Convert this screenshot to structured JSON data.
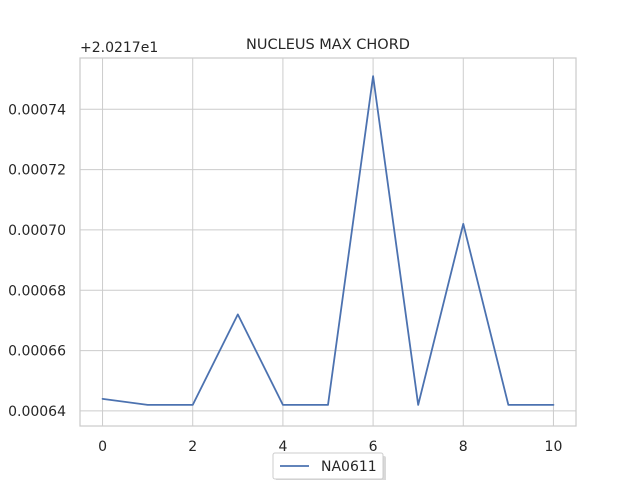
{
  "chart_data": {
    "type": "line",
    "title": "NUCLEUS MAX CHORD",
    "offset_label": "+2.0217e1",
    "xlabel": "",
    "ylabel": "",
    "xlim": [
      -0.5,
      10.5
    ],
    "ylim": [
      0.000635,
      0.000757
    ],
    "x_ticks": [
      0,
      2,
      4,
      6,
      8,
      10
    ],
    "x_tick_labels": [
      "0",
      "2",
      "4",
      "6",
      "8",
      "10"
    ],
    "y_ticks": [
      0.00064,
      0.00066,
      0.00068,
      0.0007,
      0.00072,
      0.00074
    ],
    "y_tick_labels": [
      "0.00064",
      "0.00066",
      "0.00068",
      "0.00070",
      "0.00072",
      "0.00074"
    ],
    "grid": true,
    "legend_position": "bottom-center",
    "series": [
      {
        "name": "NA0611",
        "color": "#4c72b0",
        "x": [
          0,
          1,
          2,
          3,
          4,
          5,
          6,
          7,
          8,
          9,
          10
        ],
        "values": [
          0.000644,
          0.000642,
          0.000642,
          0.000672,
          0.000642,
          0.000642,
          0.000751,
          0.000642,
          0.000702,
          0.000642,
          0.000642
        ]
      }
    ]
  }
}
